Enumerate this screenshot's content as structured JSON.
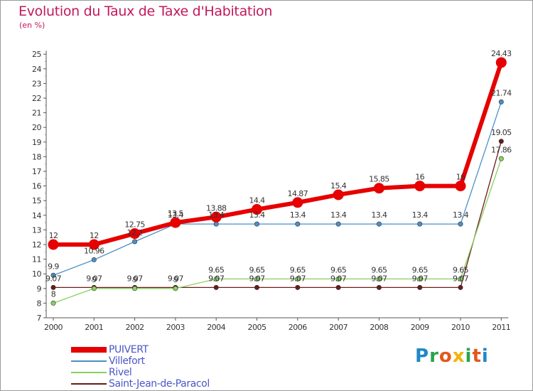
{
  "header": {
    "title": "Evolution du Taux de Taxe d'Habitation",
    "unit": "(en %)"
  },
  "chart_data": {
    "type": "line",
    "title": "Evolution du Taux de Taxe d'Habitation",
    "ylabel": "(en %)",
    "xlabel": "",
    "ylim": [
      7,
      25
    ],
    "yticks": [
      7,
      8,
      9,
      10,
      11,
      12,
      13,
      14,
      15,
      16,
      17,
      18,
      19,
      20,
      21,
      22,
      23,
      24,
      25
    ],
    "categories": [
      "2000",
      "2001",
      "2002",
      "2003",
      "2004",
      "2005",
      "2006",
      "2007",
      "2008",
      "2009",
      "2010",
      "2011"
    ],
    "grid": false,
    "legend_position": "bottom-left",
    "series": [
      {
        "name": "PUIVERT",
        "color": "#e60000",
        "values": [
          12,
          12,
          12.75,
          13.5,
          13.88,
          14.4,
          14.87,
          15.4,
          15.85,
          16,
          16,
          24.43
        ],
        "labels": [
          "12",
          "12",
          "12.75",
          "13.5",
          "13.88",
          "14.4",
          "14.87",
          "15.4",
          "15.85",
          "16",
          "16",
          "24.43"
        ]
      },
      {
        "name": "Villefort",
        "color": "#4a90c8",
        "values": [
          9.9,
          10.96,
          12.2,
          13.4,
          13.4,
          13.4,
          13.4,
          13.4,
          13.4,
          13.4,
          13.4,
          21.74
        ],
        "labels": [
          "9.9",
          "10.96",
          "12.2",
          "13.4",
          "13.4",
          "13.4",
          "13.4",
          "13.4",
          "13.4",
          "13.4",
          "13.4",
          "21.74"
        ]
      },
      {
        "name": "Rivel",
        "color": "#88d060",
        "values": [
          8,
          9,
          9,
          9,
          9.65,
          9.65,
          9.65,
          9.65,
          9.65,
          9.65,
          9.65,
          17.86
        ],
        "labels": [
          "8",
          "9",
          "9",
          "9",
          "9.65",
          "9.65",
          "9.65",
          "9.65",
          "9.65",
          "9.65",
          "9.65",
          "17.86"
        ]
      },
      {
        "name": "Saint-Jean-de-Paracol",
        "color": "#6b1a1a",
        "values": [
          9.07,
          9.07,
          9.07,
          9.07,
          9.07,
          9.07,
          9.07,
          9.07,
          9.07,
          9.07,
          9.07,
          19.05
        ],
        "labels": [
          "9.07",
          "9.07",
          "9.07",
          "9.07",
          "9.07",
          "9.07",
          "9.07",
          "9.07",
          "9.07",
          "9.07",
          "9.07",
          "19.05"
        ]
      }
    ]
  },
  "logo": {
    "letters": [
      "P",
      "r",
      "o",
      "x",
      "i",
      "t",
      "i"
    ]
  }
}
